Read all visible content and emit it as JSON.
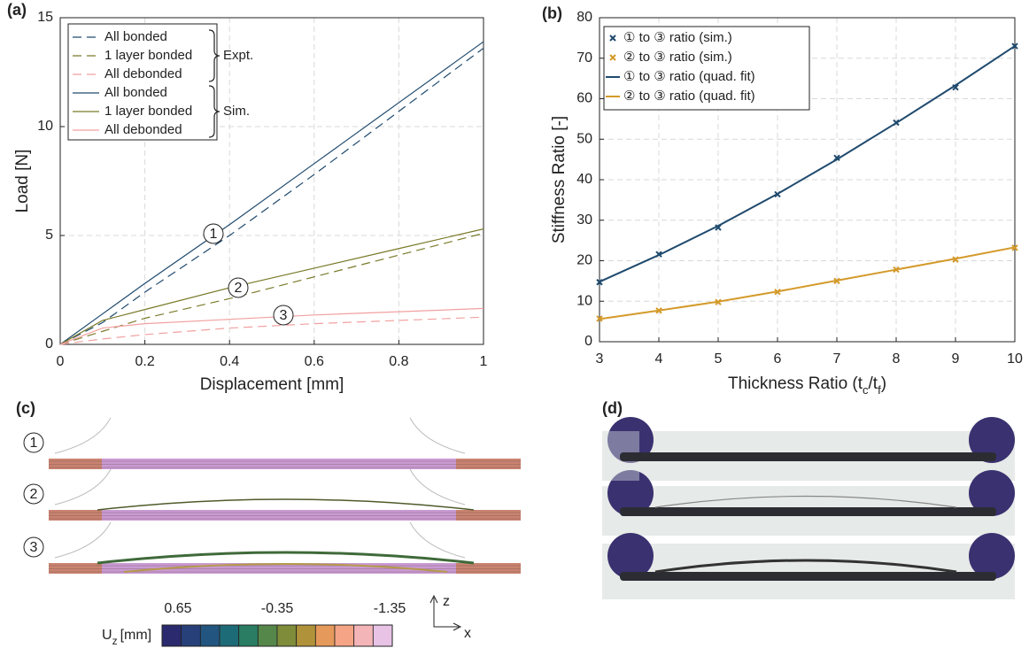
{
  "chart_data": [
    {
      "type": "line",
      "label": "(a)",
      "xlabel": "Displacement [mm]",
      "ylabel": "Load [N]",
      "x": [
        0,
        0.1,
        0.2,
        0.4,
        0.6,
        0.8,
        1
      ],
      "xlim": [
        0,
        1
      ],
      "ylim": [
        0,
        15
      ],
      "xticks": [
        0,
        0.2,
        0.4,
        0.6,
        0.8,
        1
      ],
      "yticks": [
        0,
        5,
        10,
        15
      ],
      "grid": true,
      "series": [
        {
          "name": "All bonded",
          "color": "#1f4a6e",
          "dash": true,
          "values": [
            0,
            1.0,
            2.4,
            5.0,
            7.8,
            10.7,
            13.6
          ]
        },
        {
          "name": "1 layer bonded",
          "color": "#7a7a2a",
          "dash": true,
          "values": [
            0,
            0.6,
            1.2,
            2.1,
            3.1,
            4.1,
            5.1
          ]
        },
        {
          "name": "All debonded",
          "color": "#f2a0a0",
          "dash": true,
          "values": [
            0,
            0.25,
            0.45,
            0.75,
            0.95,
            1.1,
            1.25
          ]
        },
        {
          "name": "All bonded",
          "color": "#1f4a6e",
          "dash": false,
          "values": [
            0,
            1.4,
            2.8,
            5.5,
            8.3,
            11.1,
            13.9
          ]
        },
        {
          "name": "1 layer bonded",
          "color": "#7a7a2a",
          "dash": false,
          "values": [
            0,
            1.1,
            1.6,
            2.6,
            3.5,
            4.4,
            5.3
          ]
        },
        {
          "name": "All debonded",
          "color": "#f2a0a0",
          "dash": false,
          "values": [
            0,
            0.75,
            0.95,
            1.15,
            1.35,
            1.5,
            1.65
          ]
        }
      ],
      "legend_groups": [
        "Expt.",
        "Sim."
      ],
      "annotations": [
        "1",
        "2",
        "3"
      ]
    },
    {
      "type": "line",
      "label": "(b)",
      "xlabel": [
        "Thickness Ratio (t",
        "c",
        "/t",
        "f",
        ")"
      ],
      "ylabel": "Stiffness Ratio [-]",
      "x": [
        3,
        4,
        5,
        6,
        7,
        8,
        9,
        10
      ],
      "xlim": [
        3,
        10
      ],
      "ylim": [
        0,
        80
      ],
      "xticks": [
        3,
        4,
        5,
        6,
        7,
        8,
        9,
        10
      ],
      "yticks": [
        0,
        10,
        20,
        30,
        40,
        50,
        60,
        70,
        80
      ],
      "grid": true,
      "series": [
        {
          "name": "① to ③ ratio (sim.)",
          "color": "#1f4a6e",
          "style": "marker",
          "values": [
            14.7,
            21.6,
            28.2,
            36.4,
            45.4,
            54.1,
            62.8,
            73
          ]
        },
        {
          "name": "② to ③ ratio (sim.)",
          "color": "#d49a2a",
          "style": "marker",
          "values": [
            5.7,
            7.7,
            9.8,
            12.3,
            15.0,
            17.8,
            20.3,
            23.2
          ]
        },
        {
          "name": "① to ③ ratio (quad. fit)",
          "color": "#1f4a6e",
          "style": "line",
          "values": [
            14.8,
            21.4,
            28.6,
            36.5,
            45.0,
            54.0,
            63.3,
            73.0
          ]
        },
        {
          "name": "② to ③ ratio (quad. fit)",
          "color": "#d49a2a",
          "style": "line",
          "values": [
            5.6,
            7.7,
            9.9,
            12.4,
            15.1,
            17.8,
            20.5,
            23.3
          ]
        }
      ]
    }
  ],
  "panel_c": {
    "label": "(c)",
    "beams": [
      "1",
      "2",
      "3"
    ],
    "colorbar": {
      "label": [
        "U",
        "z",
        "[mm]"
      ],
      "ticks": [
        "0.65",
        "-0.35",
        "-1.35"
      ],
      "colors": [
        "#2b2a6e",
        "#27407a",
        "#22557f",
        "#1e6b78",
        "#2a7d62",
        "#55874a",
        "#7f8c3a",
        "#b0923a",
        "#e5995a",
        "#f5a585",
        "#f4b5b8",
        "#e8c3e6"
      ]
    },
    "axes": [
      "z",
      "x"
    ]
  },
  "panel_d": {
    "label": "(d)"
  }
}
